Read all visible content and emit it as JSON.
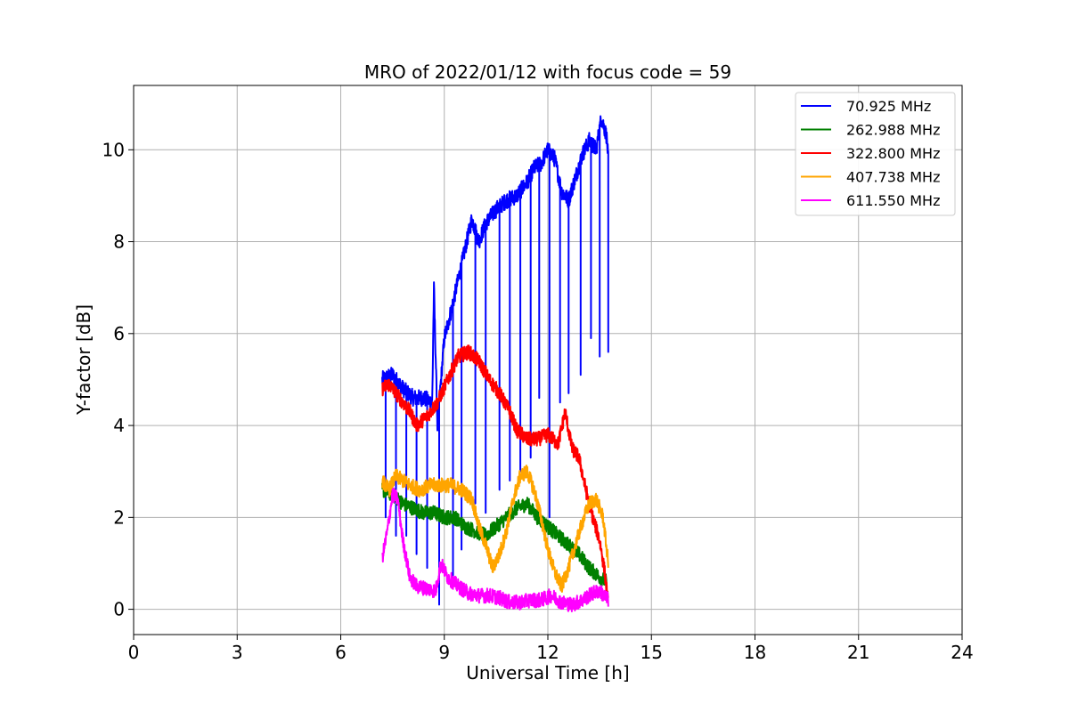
{
  "chart_data": {
    "type": "line",
    "title": "MRO of 2022/01/12 with focus code = 59",
    "xlabel": "Universal Time [h]",
    "ylabel": "Y-factor [dB]",
    "xlim": [
      0,
      24
    ],
    "ylim": [
      -0.55,
      11.4
    ],
    "xticks": [
      0,
      3,
      6,
      9,
      12,
      15,
      18,
      21,
      24
    ],
    "yticks": [
      0,
      2,
      4,
      6,
      8,
      10
    ],
    "grid": true,
    "legend_position": "upper right",
    "series": [
      {
        "name": " 70.925 MHz",
        "color": "#0000ff",
        "x": [
          7.2,
          7.5,
          7.8,
          8.1,
          8.4,
          8.65,
          8.7,
          8.8,
          9.0,
          9.2,
          9.5,
          9.8,
          10.0,
          10.2,
          10.5,
          10.8,
          11.1,
          11.4,
          11.6,
          11.8,
          12.0,
          12.2,
          12.4,
          12.6,
          12.8,
          13.0,
          13.2,
          13.4,
          13.55,
          13.7,
          13.75
        ],
        "y": [
          5.0,
          5.1,
          4.8,
          4.6,
          4.6,
          4.5,
          7.0,
          4.0,
          5.9,
          6.5,
          7.5,
          8.5,
          8.0,
          8.4,
          8.7,
          8.9,
          9.0,
          9.3,
          9.6,
          9.7,
          10.0,
          9.8,
          9.1,
          8.9,
          9.4,
          9.9,
          10.2,
          10.0,
          10.7,
          10.3,
          9.8
        ],
        "dips_at": [
          7.3,
          7.6,
          7.9,
          8.2,
          8.5,
          8.85,
          9.25,
          9.5,
          9.9,
          10.2,
          10.6,
          10.9,
          11.2,
          11.5,
          11.75,
          12.05,
          12.35,
          12.6,
          12.95,
          13.25,
          13.5,
          13.75
        ],
        "dips_to": [
          2.0,
          1.6,
          1.6,
          1.2,
          0.9,
          0.1,
          0.6,
          1.3,
          2.3,
          2.1,
          2.6,
          2.8,
          3.0,
          3.3,
          4.6,
          2.0,
          4.5,
          4.7,
          5.1,
          5.9,
          5.5,
          5.6
        ]
      },
      {
        "name": "262.988 MHz",
        "color": "#008000",
        "x": [
          7.2,
          7.5,
          7.8,
          8.1,
          8.4,
          8.7,
          9.0,
          9.3,
          9.6,
          9.9,
          10.2,
          10.5,
          10.8,
          11.1,
          11.4,
          11.7,
          12.0,
          12.3,
          12.6,
          12.9,
          13.2,
          13.5,
          13.7
        ],
        "y": [
          2.6,
          2.5,
          2.3,
          2.2,
          2.1,
          2.1,
          2.0,
          2.0,
          1.8,
          1.7,
          1.6,
          1.8,
          2.0,
          2.2,
          2.3,
          2.0,
          1.8,
          1.6,
          1.4,
          1.2,
          0.9,
          0.7,
          0.6
        ]
      },
      {
        "name": "322.800 MHz",
        "color": "#ff0000",
        "x": [
          7.2,
          7.4,
          7.6,
          7.8,
          8.0,
          8.2,
          8.5,
          8.8,
          9.1,
          9.4,
          9.7,
          10.0,
          10.3,
          10.6,
          10.9,
          11.1,
          11.4,
          11.7,
          12.0,
          12.3,
          12.5,
          12.7,
          12.9,
          13.1,
          13.3,
          13.5,
          13.65,
          13.75
        ],
        "y": [
          4.8,
          4.9,
          4.7,
          4.5,
          4.3,
          4.0,
          4.2,
          4.5,
          5.0,
          5.5,
          5.6,
          5.4,
          5.0,
          4.7,
          4.3,
          3.9,
          3.7,
          3.7,
          3.8,
          3.6,
          4.3,
          3.5,
          3.3,
          2.6,
          2.0,
          1.5,
          0.8,
          0.1
        ]
      },
      {
        "name": "407.738 MHz",
        "color": "#ffa500",
        "x": [
          7.2,
          7.4,
          7.6,
          7.8,
          8.0,
          8.3,
          8.6,
          8.9,
          9.2,
          9.5,
          9.8,
          10.0,
          10.2,
          10.4,
          10.6,
          10.8,
          11.0,
          11.2,
          11.4,
          11.6,
          11.8,
          12.0,
          12.2,
          12.4,
          12.6,
          12.8,
          13.0,
          13.2,
          13.4,
          13.6,
          13.75
        ],
        "y": [
          2.8,
          2.6,
          2.9,
          2.8,
          2.7,
          2.6,
          2.7,
          2.7,
          2.7,
          2.6,
          2.4,
          1.8,
          1.4,
          0.9,
          1.2,
          1.7,
          2.4,
          2.9,
          3.0,
          2.6,
          2.0,
          1.3,
          0.8,
          0.5,
          0.9,
          1.4,
          1.9,
          2.3,
          2.4,
          2.0,
          1.0
        ]
      },
      {
        "name": "611.550 MHz",
        "color": "#ff00ff",
        "x": [
          7.2,
          7.35,
          7.5,
          7.65,
          7.8,
          8.0,
          8.2,
          8.5,
          8.75,
          8.9,
          9.1,
          9.4,
          9.7,
          10.0,
          10.3,
          10.6,
          10.9,
          11.2,
          11.5,
          11.8,
          12.1,
          12.4,
          12.7,
          13.0,
          13.3,
          13.5,
          13.75
        ],
        "y": [
          1.1,
          1.7,
          2.5,
          2.4,
          1.5,
          0.7,
          0.5,
          0.45,
          0.4,
          1.0,
          0.7,
          0.5,
          0.35,
          0.3,
          0.3,
          0.25,
          0.15,
          0.15,
          0.2,
          0.2,
          0.3,
          0.15,
          0.1,
          0.2,
          0.35,
          0.4,
          0.2
        ]
      }
    ]
  }
}
